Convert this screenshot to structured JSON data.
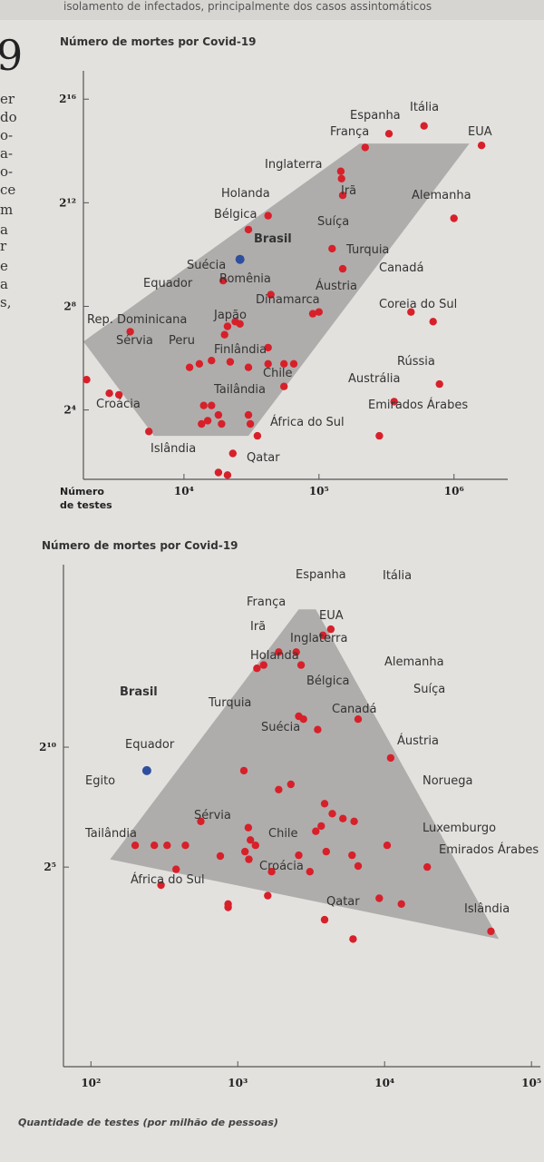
{
  "page": {
    "top_text": "isolamento de infectados, principalmente dos casos assintomáticos",
    "big_number": "9",
    "margin_fragments": [
      "er",
      "do",
      "o-",
      "a-",
      "o-",
      "ce",
      "m",
      "a",
      "r",
      "e",
      "a",
      "s,"
    ]
  },
  "colors": {
    "point": "#d8202a",
    "brasil": "#2e4f9e",
    "region": "#a9a7a5",
    "axis": "#555555"
  },
  "chart_data": [
    {
      "type": "scatter",
      "title": "Número de mortes por Covid-19",
      "xlabel": "Número de testes",
      "ylabel": "",
      "x_scale": "log",
      "y_scale": "log2",
      "x_ticks": [
        {
          "value": 10000,
          "label": "10⁴"
        },
        {
          "value": 100000,
          "label": "10⁵"
        },
        {
          "value": 1000000,
          "label": "10⁶"
        }
      ],
      "y_ticks": [
        {
          "value": 16,
          "label": "2⁴"
        },
        {
          "value": 256,
          "label": "2⁸"
        },
        {
          "value": 4096,
          "label": "2¹²"
        },
        {
          "value": 65536,
          "label": "2¹⁶"
        }
      ],
      "xlim": [
        1800,
        2500000
      ],
      "ylim": [
        2.5,
        140000
      ],
      "region": [
        [
          1800,
          100
        ],
        [
          200000,
          20000
        ],
        [
          1300000,
          20000
        ],
        [
          30000,
          8
        ],
        [
          6000,
          8
        ]
      ],
      "points": [
        {
          "label": "Itália",
          "x": 600000,
          "y": 32000
        },
        {
          "label": "Espanha",
          "x": 330000,
          "y": 26000
        },
        {
          "label": "França",
          "x": 220000,
          "y": 18000
        },
        {
          "label": "EUA",
          "x": 1600000,
          "y": 19000
        },
        {
          "label": "Inglaterra",
          "x": 145000,
          "y": 9500
        },
        {
          "label": "",
          "x": 147000,
          "y": 7800
        },
        {
          "label": "Irã",
          "x": 150000,
          "y": 5000
        },
        {
          "label": "Alemanha",
          "x": 1000000,
          "y": 2700
        },
        {
          "label": "Holanda",
          "x": 42000,
          "y": 2900
        },
        {
          "label": "Bélgica",
          "x": 30000,
          "y": 2000
        },
        {
          "label": "Brasil",
          "x": 26000,
          "y": 900,
          "highlight": true
        },
        {
          "label": "Suíça",
          "x": 125000,
          "y": 1200
        },
        {
          "label": "Turquia",
          "x": 150000,
          "y": 700
        },
        {
          "label": "Suécia",
          "x": 19500,
          "y": 510
        },
        {
          "label": "Canadá",
          "x": 480000,
          "y": 220
        },
        {
          "label": "",
          "x": 44000,
          "y": 350
        },
        {
          "label": "Equador",
          "x": 4000,
          "y": 130
        },
        {
          "label": "Romênia",
          "x": 21000,
          "y": 150
        },
        {
          "label": "",
          "x": 24000,
          "y": 170
        },
        {
          "label": "",
          "x": 20000,
          "y": 120
        },
        {
          "label": "Áustria",
          "x": 90000,
          "y": 210
        },
        {
          "label": "",
          "x": 100000,
          "y": 220
        },
        {
          "label": "Coreia do Sul",
          "x": 700000,
          "y": 170
        },
        {
          "label": "Dinamarca",
          "x": 26000,
          "y": 160
        },
        {
          "label": "Rep. Dominicana",
          "x": 1900,
          "y": 36
        },
        {
          "label": "Japão",
          "x": 13000,
          "y": 55
        },
        {
          "label": "",
          "x": 16000,
          "y": 60
        },
        {
          "label": "",
          "x": 22000,
          "y": 58
        },
        {
          "label": "",
          "x": 30000,
          "y": 50
        },
        {
          "label": "",
          "x": 42000,
          "y": 85
        },
        {
          "label": "",
          "x": 42000,
          "y": 55
        },
        {
          "label": "",
          "x": 55000,
          "y": 55
        },
        {
          "label": "",
          "x": 65000,
          "y": 55
        },
        {
          "label": "Finlândia",
          "x": 55000,
          "y": 30
        },
        {
          "label": "Sérvia",
          "x": 2800,
          "y": 25
        },
        {
          "label": "",
          "x": 3300,
          "y": 24
        },
        {
          "label": "Peru",
          "x": 11000,
          "y": 50
        },
        {
          "label": "",
          "x": 14000,
          "y": 18
        },
        {
          "label": "",
          "x": 16000,
          "y": 18
        },
        {
          "label": "",
          "x": 18000,
          "y": 14
        },
        {
          "label": "",
          "x": 19000,
          "y": 11
        },
        {
          "label": "Chile",
          "x": 30000,
          "y": 14
        },
        {
          "label": "",
          "x": 31000,
          "y": 11
        },
        {
          "label": "Rússia",
          "x": 780000,
          "y": 32
        },
        {
          "label": "Austrália",
          "x": 360000,
          "y": 20
        },
        {
          "label": "Tailândia",
          "x": 15000,
          "y": 12
        },
        {
          "label": "Croácia",
          "x": 5500,
          "y": 9
        },
        {
          "label": "",
          "x": 13500,
          "y": 11
        },
        {
          "label": "Emirados Árabes",
          "x": 280000,
          "y": 8
        },
        {
          "label": "África do Sul",
          "x": 35000,
          "y": 8
        },
        {
          "label": "",
          "x": 23000,
          "y": 5
        },
        {
          "label": "Islândia",
          "x": 18000,
          "y": 3
        },
        {
          "label": "Qatar",
          "x": 21000,
          "y": 2.8
        }
      ]
    },
    {
      "type": "scatter",
      "title": "Número de mortes por Covid-19",
      "xlabel": "Quantidade de testes (por milhão de pessoas)",
      "ylabel": "",
      "x_scale": "log",
      "y_scale": "log2",
      "x_ticks": [
        {
          "value": 100,
          "label": "10²"
        },
        {
          "value": 1000,
          "label": "10³"
        },
        {
          "value": 10000,
          "label": "10⁴"
        },
        {
          "value": 100000,
          "label": "10⁵"
        }
      ],
      "y_ticks": [
        {
          "value": 32,
          "label": "2⁵"
        },
        {
          "value": 1024,
          "label": "2¹⁰"
        }
      ],
      "xlim": [
        65,
        115000
      ],
      "ylim": [
        0.1,
        200000
      ],
      "region": [
        [
          135,
          40
        ],
        [
          2600,
          55000
        ],
        [
          3400,
          55000
        ],
        [
          60000,
          4
        ]
      ],
      "points": [
        {
          "label": "Espanha",
          "x": 3800,
          "y": 26000
        },
        {
          "label": "Itália",
          "x": 4300,
          "y": 31000
        },
        {
          "label": "França",
          "x": 1900,
          "y": 16000
        },
        {
          "label": "",
          "x": 2500,
          "y": 16000
        },
        {
          "label": "EUA",
          "x": 1500,
          "y": 11000
        },
        {
          "label": "Irã",
          "x": 1350,
          "y": 10000
        },
        {
          "label": "Inglaterra",
          "x": 2700,
          "y": 11000
        },
        {
          "label": "Holanda",
          "x": 2600,
          "y": 2500
        },
        {
          "label": "Alemanha",
          "x": 6600,
          "y": 2300
        },
        {
          "label": "",
          "x": 2800,
          "y": 2300
        },
        {
          "label": "Bélgica",
          "x": 3500,
          "y": 1700
        },
        {
          "label": "Suíça",
          "x": 11000,
          "y": 750
        },
        {
          "label": "Brasil",
          "x": 240,
          "y": 520,
          "highlight": true
        },
        {
          "label": "Turquia",
          "x": 1100,
          "y": 520
        },
        {
          "label": "Canadá",
          "x": 2300,
          "y": 350
        },
        {
          "label": "Suécia",
          "x": 1900,
          "y": 300
        },
        {
          "label": "",
          "x": 3900,
          "y": 200
        },
        {
          "label": "",
          "x": 4400,
          "y": 150
        },
        {
          "label": "",
          "x": 5200,
          "y": 130
        },
        {
          "label": "Áustria",
          "x": 6200,
          "y": 120
        },
        {
          "label": "",
          "x": 3700,
          "y": 105
        },
        {
          "label": "",
          "x": 3400,
          "y": 90
        },
        {
          "label": "Equador",
          "x": 560,
          "y": 120
        },
        {
          "label": "",
          "x": 1180,
          "y": 100
        },
        {
          "label": "Egito",
          "x": 200,
          "y": 60
        },
        {
          "label": "",
          "x": 270,
          "y": 60
        },
        {
          "label": "",
          "x": 330,
          "y": 60
        },
        {
          "label": "",
          "x": 440,
          "y": 60
        },
        {
          "label": "",
          "x": 1220,
          "y": 70
        },
        {
          "label": "",
          "x": 1320,
          "y": 60
        },
        {
          "label": "",
          "x": 1120,
          "y": 50
        },
        {
          "label": "",
          "x": 4000,
          "y": 50
        },
        {
          "label": "Noruega",
          "x": 10400,
          "y": 60
        },
        {
          "label": "",
          "x": 2600,
          "y": 45
        },
        {
          "label": "",
          "x": 6000,
          "y": 45
        },
        {
          "label": "",
          "x": 1190,
          "y": 40
        },
        {
          "label": "",
          "x": 760,
          "y": 44
        },
        {
          "label": "Sérvia",
          "x": 380,
          "y": 30
        },
        {
          "label": "",
          "x": 6600,
          "y": 33
        },
        {
          "label": "",
          "x": 1700,
          "y": 28
        },
        {
          "label": "",
          "x": 3100,
          "y": 28
        },
        {
          "label": "Luxemburgo",
          "x": 19500,
          "y": 32
        },
        {
          "label": "Tailândia",
          "x": 300,
          "y": 19
        },
        {
          "label": "Chile",
          "x": 1600,
          "y": 14
        },
        {
          "label": "",
          "x": 9200,
          "y": 13
        },
        {
          "label": "Emirados Árabes",
          "x": 13000,
          "y": 11
        },
        {
          "label": "Croácia",
          "x": 860,
          "y": 11
        },
        {
          "label": "África do Sul",
          "x": 860,
          "y": 10
        },
        {
          "label": "",
          "x": 3900,
          "y": 7
        },
        {
          "label": "Qatar",
          "x": 6100,
          "y": 4
        },
        {
          "label": "Islândia",
          "x": 53000,
          "y": 5
        }
      ]
    }
  ]
}
